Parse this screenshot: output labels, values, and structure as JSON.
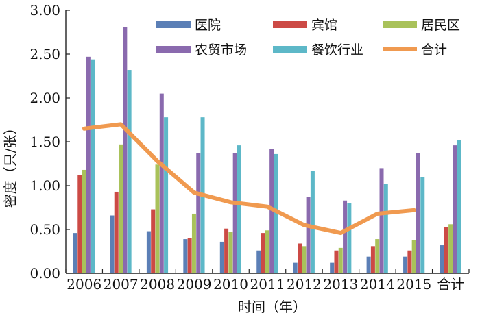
{
  "chart_data": {
    "type": "bar",
    "title": "",
    "xlabel": "时间（年）",
    "ylabel": "密度（只/张）",
    "ylim": [
      0,
      3.0
    ],
    "yticks": [
      "0.00",
      "0.50",
      "1.00",
      "1.50",
      "2.00",
      "2.50",
      "3.00"
    ],
    "categories": [
      "2006",
      "2007",
      "2008",
      "2009",
      "2010",
      "2011",
      "2012",
      "2013",
      "2014",
      "2015",
      "合计"
    ],
    "legend_position": "top-right",
    "series": [
      {
        "name": "医院",
        "kind": "bar",
        "color": "#5b7fb6",
        "values": [
          0.46,
          0.66,
          0.48,
          0.39,
          0.36,
          0.26,
          0.12,
          0.12,
          0.19,
          0.19,
          0.32
        ]
      },
      {
        "name": "宾馆",
        "kind": "bar",
        "color": "#cc4a45",
        "values": [
          1.12,
          0.93,
          0.73,
          0.4,
          0.51,
          0.46,
          0.34,
          0.26,
          0.31,
          0.26,
          0.53
        ]
      },
      {
        "name": "居民区",
        "kind": "bar",
        "color": "#a9c25a",
        "values": [
          1.18,
          1.47,
          1.24,
          0.68,
          0.47,
          0.49,
          0.31,
          0.29,
          0.39,
          0.38,
          0.56
        ]
      },
      {
        "name": "农贸市场",
        "kind": "bar",
        "color": "#8a6aae",
        "values": [
          2.47,
          2.81,
          2.05,
          1.37,
          1.37,
          1.42,
          0.87,
          0.83,
          1.2,
          1.37,
          1.46
        ]
      },
      {
        "name": "餐饮行业",
        "kind": "bar",
        "color": "#5db8c8",
        "values": [
          2.44,
          2.32,
          1.78,
          1.78,
          1.46,
          1.36,
          1.17,
          0.8,
          1.02,
          1.1,
          1.52
        ]
      },
      {
        "name": "合计",
        "kind": "line",
        "color": "#f09a50",
        "values": [
          1.65,
          1.7,
          1.28,
          0.92,
          0.81,
          0.76,
          0.55,
          0.46,
          0.68,
          0.72,
          null
        ]
      }
    ]
  }
}
